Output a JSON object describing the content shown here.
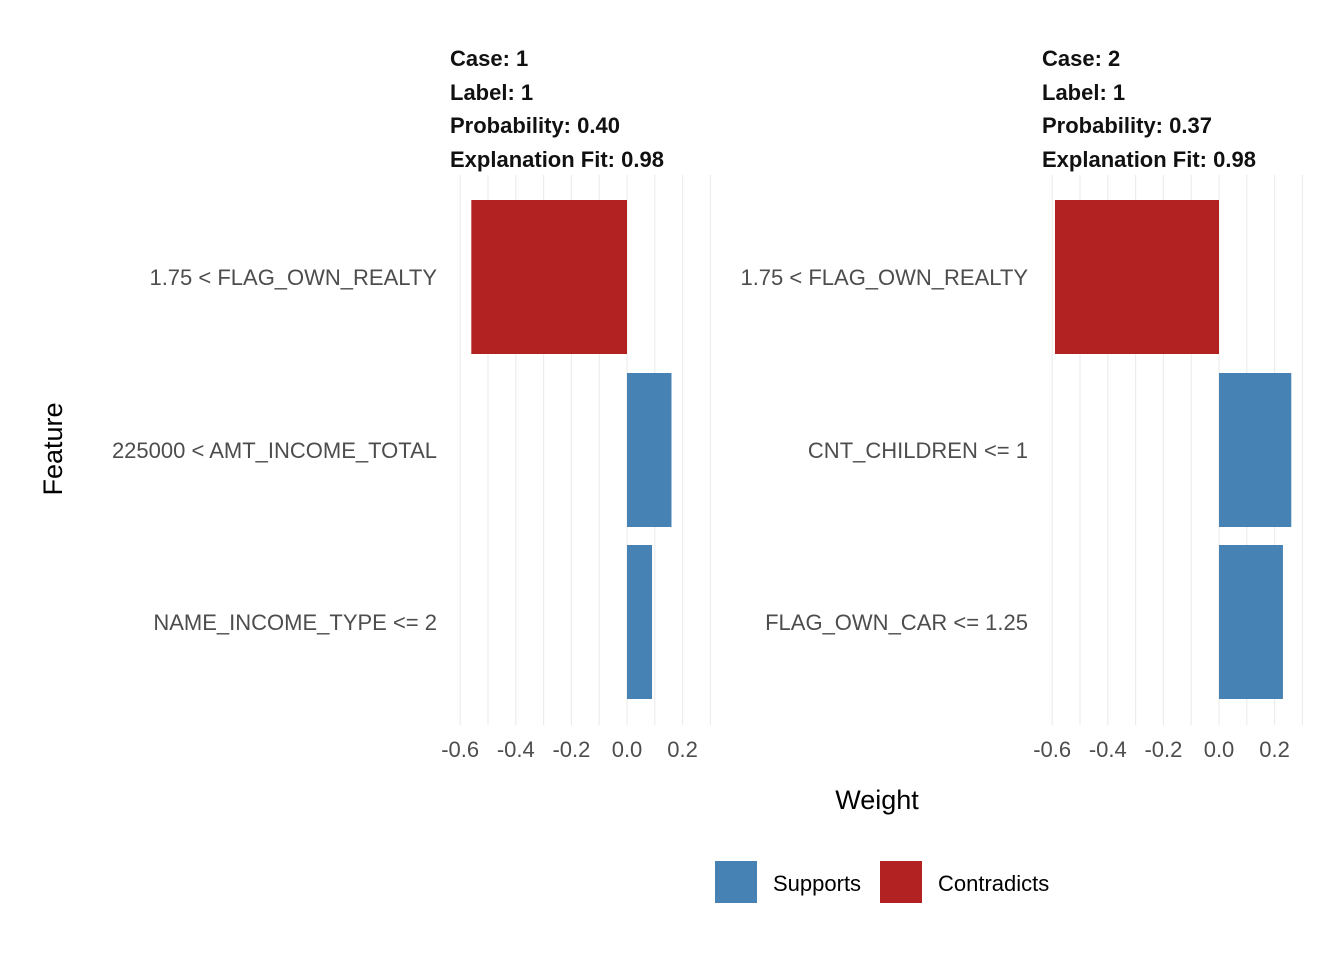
{
  "colors": {
    "supports": "#4682B4",
    "contradicts": "#B22222",
    "grid": "#EBEBEB"
  },
  "chart_data": {
    "type": "bar",
    "orientation": "horizontal",
    "xlabel": "Weight",
    "ylabel": "Feature",
    "xlim": [
      -0.6,
      0.2
    ],
    "xticks": [
      -0.6,
      -0.4,
      -0.2,
      0.0,
      0.2
    ],
    "xtick_labels": [
      "-0.6",
      "-0.4",
      "-0.2",
      "0.0",
      "0.2"
    ],
    "grid": true,
    "legend": {
      "position": "bottom",
      "entries": [
        "Supports",
        "Contradicts"
      ]
    },
    "panels": [
      {
        "strip": [
          "Case: 1",
          "Label: 1",
          "Probability: 0.40",
          "Explanation Fit: 0.98"
        ],
        "bars": [
          {
            "feature": "1.75 < FLAG_OWN_REALTY",
            "weight": -0.56,
            "type": "Contradicts"
          },
          {
            "feature": "225000 < AMT_INCOME_TOTAL",
            "weight": 0.16,
            "type": "Supports"
          },
          {
            "feature": "NAME_INCOME_TYPE <= 2",
            "weight": 0.09,
            "type": "Supports"
          }
        ]
      },
      {
        "strip": [
          "Case: 2",
          "Label: 1",
          "Probability: 0.37",
          "Explanation Fit: 0.98"
        ],
        "bars": [
          {
            "feature": "1.75 < FLAG_OWN_REALTY",
            "weight": -0.59,
            "type": "Contradicts"
          },
          {
            "feature": "CNT_CHILDREN <= 1",
            "weight": 0.26,
            "type": "Supports"
          },
          {
            "feature": "FLAG_OWN_CAR <= 1.25",
            "weight": 0.23,
            "type": "Supports"
          }
        ]
      }
    ]
  }
}
